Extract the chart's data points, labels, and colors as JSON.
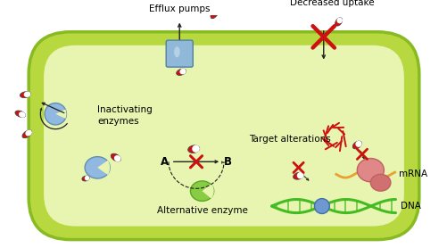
{
  "cell_outer_color": "#b8d840",
  "cell_inner_color": "#e8f5b0",
  "text_efflux": "Efflux pumps",
  "text_decreased": "Decreased uptake",
  "text_inactivating": "Inactivating\nenzymes",
  "text_alternative": "Alternative enzyme",
  "text_target": "Target alterations",
  "text_mrna": "mRNA",
  "text_dna": "DNA",
  "text_a": "A",
  "text_b": "B",
  "red": "#cc1111",
  "dark_red": "#aa0000",
  "blue_enz": "#90b8e0",
  "green_enz": "#88cc44",
  "dna_green": "#44bb22",
  "protein_pink": "#e08888",
  "mrna_orange": "#e8a030",
  "pump_blue": "#90b8d8",
  "arrow_color": "#222222",
  "font_size": 7.5,
  "white": "#ffffff",
  "gray": "#666666"
}
